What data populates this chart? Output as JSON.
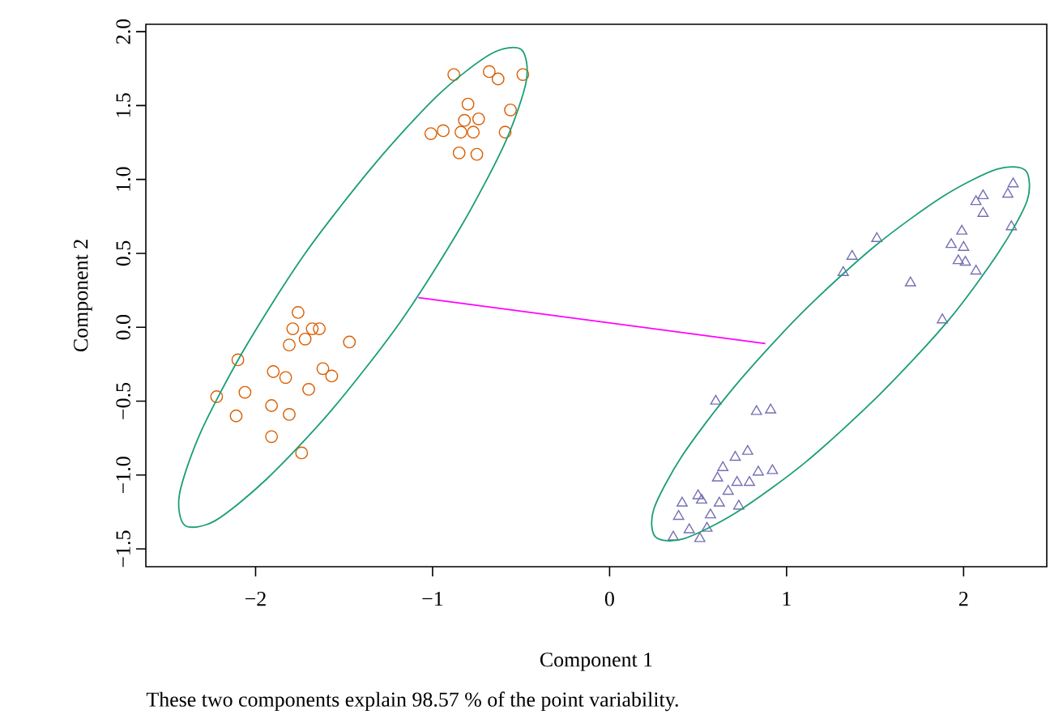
{
  "chart_data": {
    "type": "scatter",
    "xlabel": "Component 1",
    "ylabel": "Component 2",
    "annotations": [
      "These two components explain 98.57 % of the point variability."
    ],
    "xlim": [
      -2.62,
      2.47
    ],
    "ylim": [
      -1.62,
      2.05
    ],
    "xticks": [
      {
        "value": -2,
        "label": "−2"
      },
      {
        "value": -1,
        "label": "−1"
      },
      0,
      1,
      2
    ],
    "yticks": [
      {
        "value": -1.5,
        "label": "−1.5"
      },
      {
        "value": -1,
        "label": "−1.0"
      },
      {
        "value": -0.5,
        "label": "−0.5"
      },
      {
        "value": 0,
        "label": "0.0"
      },
      0.5,
      {
        "value": 1,
        "label": "1.0"
      },
      1.5,
      {
        "value": 2,
        "label": "2.0"
      }
    ],
    "series": [
      {
        "marker": "circle",
        "color": "#d95f02",
        "x": [
          -0.88,
          -0.68,
          -0.63,
          -0.49,
          -0.8,
          -0.82,
          -0.74,
          -0.56,
          -1.01,
          -0.94,
          -0.84,
          -0.77,
          -0.59,
          -0.85,
          -0.75,
          -1.76,
          -1.79,
          -1.68,
          -1.64,
          -1.72,
          -1.81,
          -1.47,
          -2.1,
          -1.9,
          -1.83,
          -1.62,
          -1.57,
          -2.22,
          -2.06,
          -1.7,
          -1.91,
          -1.81,
          -2.11,
          -1.91,
          -1.74
        ],
        "values": [
          1.71,
          1.73,
          1.68,
          1.71,
          1.51,
          1.4,
          1.41,
          1.47,
          1.31,
          1.33,
          1.32,
          1.32,
          1.32,
          1.18,
          1.17,
          0.1,
          -0.01,
          -0.01,
          -0.01,
          -0.08,
          -0.12,
          -0.1,
          -0.22,
          -0.3,
          -0.34,
          -0.28,
          -0.33,
          -0.47,
          -0.44,
          -0.42,
          -0.53,
          -0.59,
          -0.6,
          -0.74,
          -0.85
        ]
      },
      {
        "marker": "triangle",
        "color": "#7570b3",
        "x": [
          2.28,
          2.11,
          2.07,
          2.25,
          2.11,
          2.27,
          1.99,
          1.93,
          2.0,
          1.97,
          2.01,
          2.07,
          1.51,
          1.37,
          1.32,
          1.7,
          1.88,
          0.6,
          0.83,
          0.91,
          0.71,
          0.78,
          0.64,
          0.61,
          0.84,
          0.92,
          0.72,
          0.79,
          0.67,
          0.5,
          0.52,
          0.41,
          0.62,
          0.73,
          0.57,
          0.39,
          0.45,
          0.55,
          0.36,
          0.51
        ],
        "values": [
          0.97,
          0.89,
          0.85,
          0.9,
          0.77,
          0.68,
          0.65,
          0.56,
          0.54,
          0.45,
          0.44,
          0.38,
          0.6,
          0.48,
          0.37,
          0.3,
          0.05,
          -0.5,
          -0.57,
          -0.56,
          -0.88,
          -0.84,
          -0.95,
          -1.02,
          -0.98,
          -0.97,
          -1.05,
          -1.05,
          -1.11,
          -1.14,
          -1.17,
          -1.19,
          -1.19,
          -1.21,
          -1.27,
          -1.28,
          -1.37,
          -1.36,
          -1.42,
          -1.43
        ]
      },
      {
        "type": "line",
        "marker": "none",
        "color": "#ff00ff",
        "x": [
          -1.08,
          0.88
        ],
        "values": [
          0.2,
          -0.11
        ]
      }
    ]
  }
}
